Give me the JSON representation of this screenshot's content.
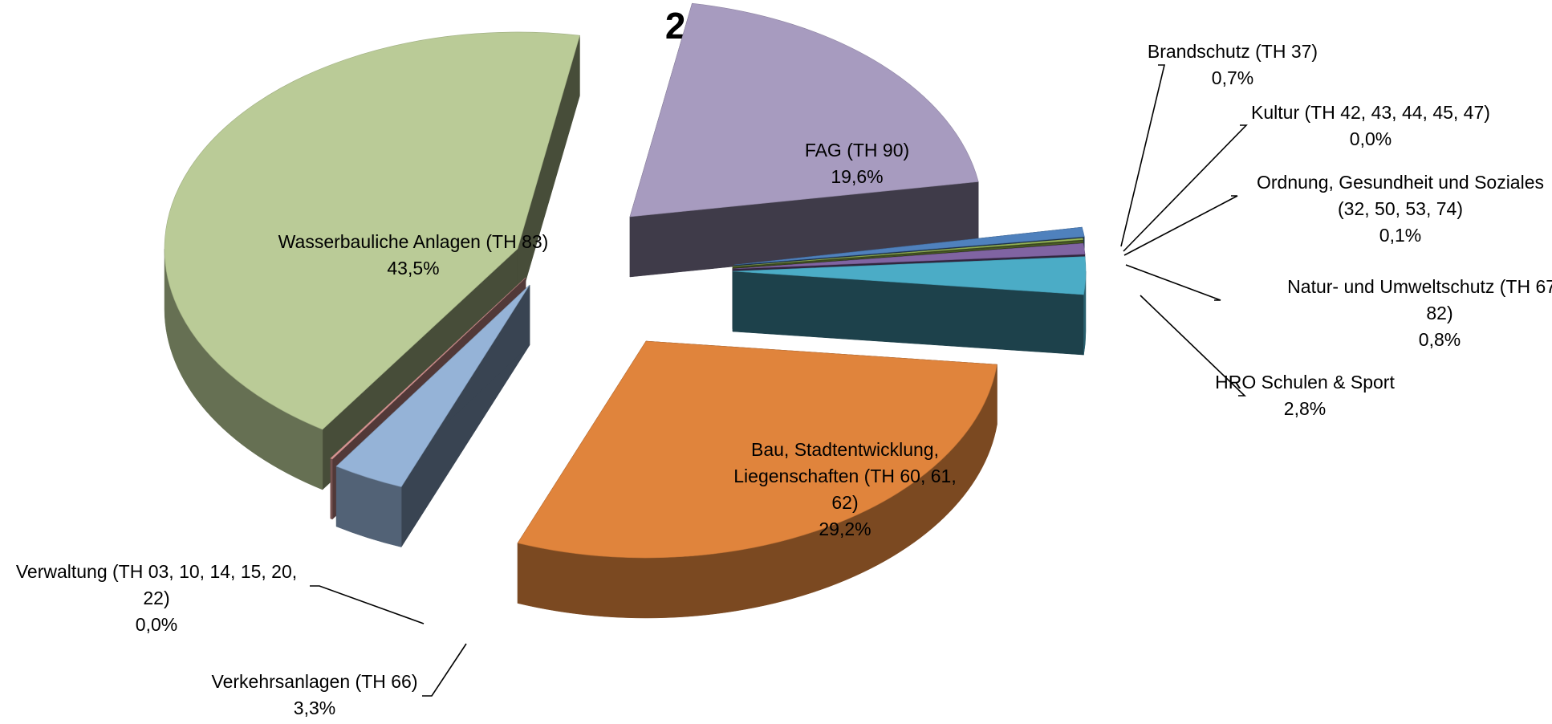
{
  "chart_data": {
    "type": "pie",
    "title": "2020",
    "style": "3d-exploded",
    "slices": [
      {
        "label": "Brandschutz (TH 37)",
        "value_label": "0,7%",
        "value": 0.7,
        "color": "#4f81bd"
      },
      {
        "label": "Kultur (TH 42, 43, 44, 45, 47)",
        "value_label": "0,0%",
        "value": 0.0,
        "color": "#9bbb59"
      },
      {
        "label": "Ordnung, Gesundheit und Soziales (32, 50, 53, 74)",
        "value_label": "0,1%",
        "value": 0.1,
        "color": "#4f6228"
      },
      {
        "label": "Natur- und Umweltschutz (TH 67, 73, 82)",
        "value_label": "0,8%",
        "value": 0.8,
        "color": "#8064a2"
      },
      {
        "label": "HRO Schulen & Sport",
        "value_label": "2,8%",
        "value": 2.8,
        "color": "#4bacc6"
      },
      {
        "label": "Bau, Stadtentwicklung, Liegenschaften (TH 60, 61, 62)",
        "value_label": "29,2%",
        "value": 29.2,
        "color": "#e0843c"
      },
      {
        "label": "Verkehrsanlagen (TH 66)",
        "value_label": "3,3%",
        "value": 3.3,
        "color": "#95b3d7"
      },
      {
        "label": "Verwaltung (TH 03, 10, 14, 15, 20, 22)",
        "value_label": "0,0%",
        "value": 0.0,
        "color": "#d99694"
      },
      {
        "label": "Wasserbauliche Anlagen (TH 83)",
        "value_label": "43,5%",
        "value": 43.5,
        "color": "#bacb97"
      },
      {
        "label": "FAG (TH 90)",
        "value_label": "19,6%",
        "value": 19.6,
        "color": "#a79bbf"
      }
    ]
  }
}
